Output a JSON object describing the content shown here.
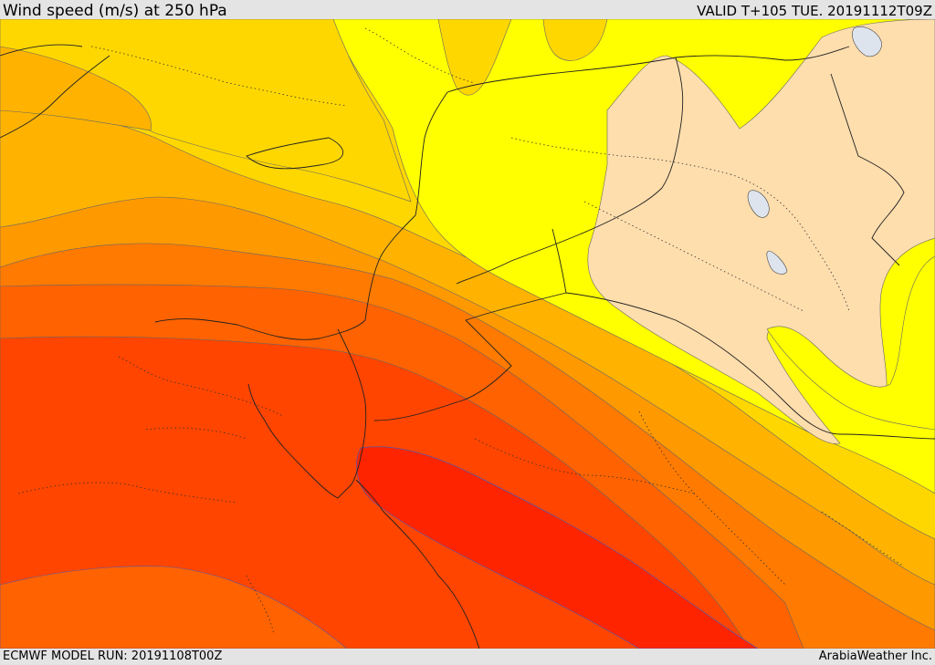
{
  "header": {
    "title": "Wind speed (m/s) at 250 hPa",
    "valid_time": "VALID T+105 TUE. 20191112T09Z"
  },
  "footer": {
    "model_run": "ECMWF MODEL RUN: 20191108T00Z",
    "credit": "ArabiaWeather Inc."
  },
  "map": {
    "variable": "wind speed",
    "pressure_level_hpa": 250,
    "units": "m/s",
    "colors": {
      "lowest_band": "#ffdead",
      "band_2": "#ffff00",
      "band_3": "#ffd700",
      "band_4": "#ffb300",
      "band_5": "#ff9900",
      "band_6": "#ff7a00",
      "band_7": "#ff6200",
      "band_8": "#ff4500",
      "highest_band": "#ff2400",
      "lake": "#dde4ee"
    }
  }
}
